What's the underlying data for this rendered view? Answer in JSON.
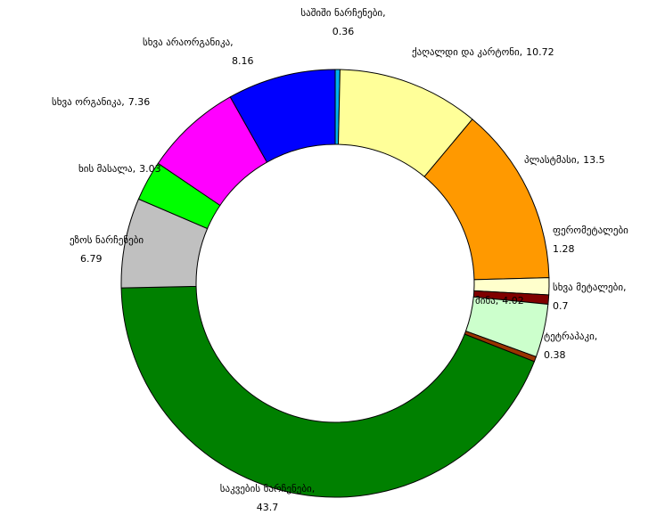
{
  "chart_data": {
    "type": "donut",
    "categories": [
      "საშიში ნარჩენები,",
      "ქაღალდი და კარტონი,",
      "პლასტმასი,",
      "ფერომეტალები",
      "სხვა მეტალები,",
      "მინა,",
      "ტეტრაპაკი,",
      "საკვების ნარჩენები,",
      "ეზოს ნარჩენები",
      "ხის მასალა,",
      "სხვა ორგანიკა,",
      "სხვა არაორგანიკა,"
    ],
    "values": [
      0.36,
      10.72,
      13.5,
      1.28,
      0.7,
      4.02,
      0.38,
      43.7,
      6.79,
      3.03,
      7.36,
      8.16
    ],
    "colors": [
      "#00b0f0",
      "#ffff99",
      "#ff9900",
      "#ffffcc",
      "#800000",
      "#ccffcc",
      "#993300",
      "#008000",
      "#c0c0c0",
      "#00ff00",
      "#ff00ff",
      "#0000ff"
    ]
  }
}
